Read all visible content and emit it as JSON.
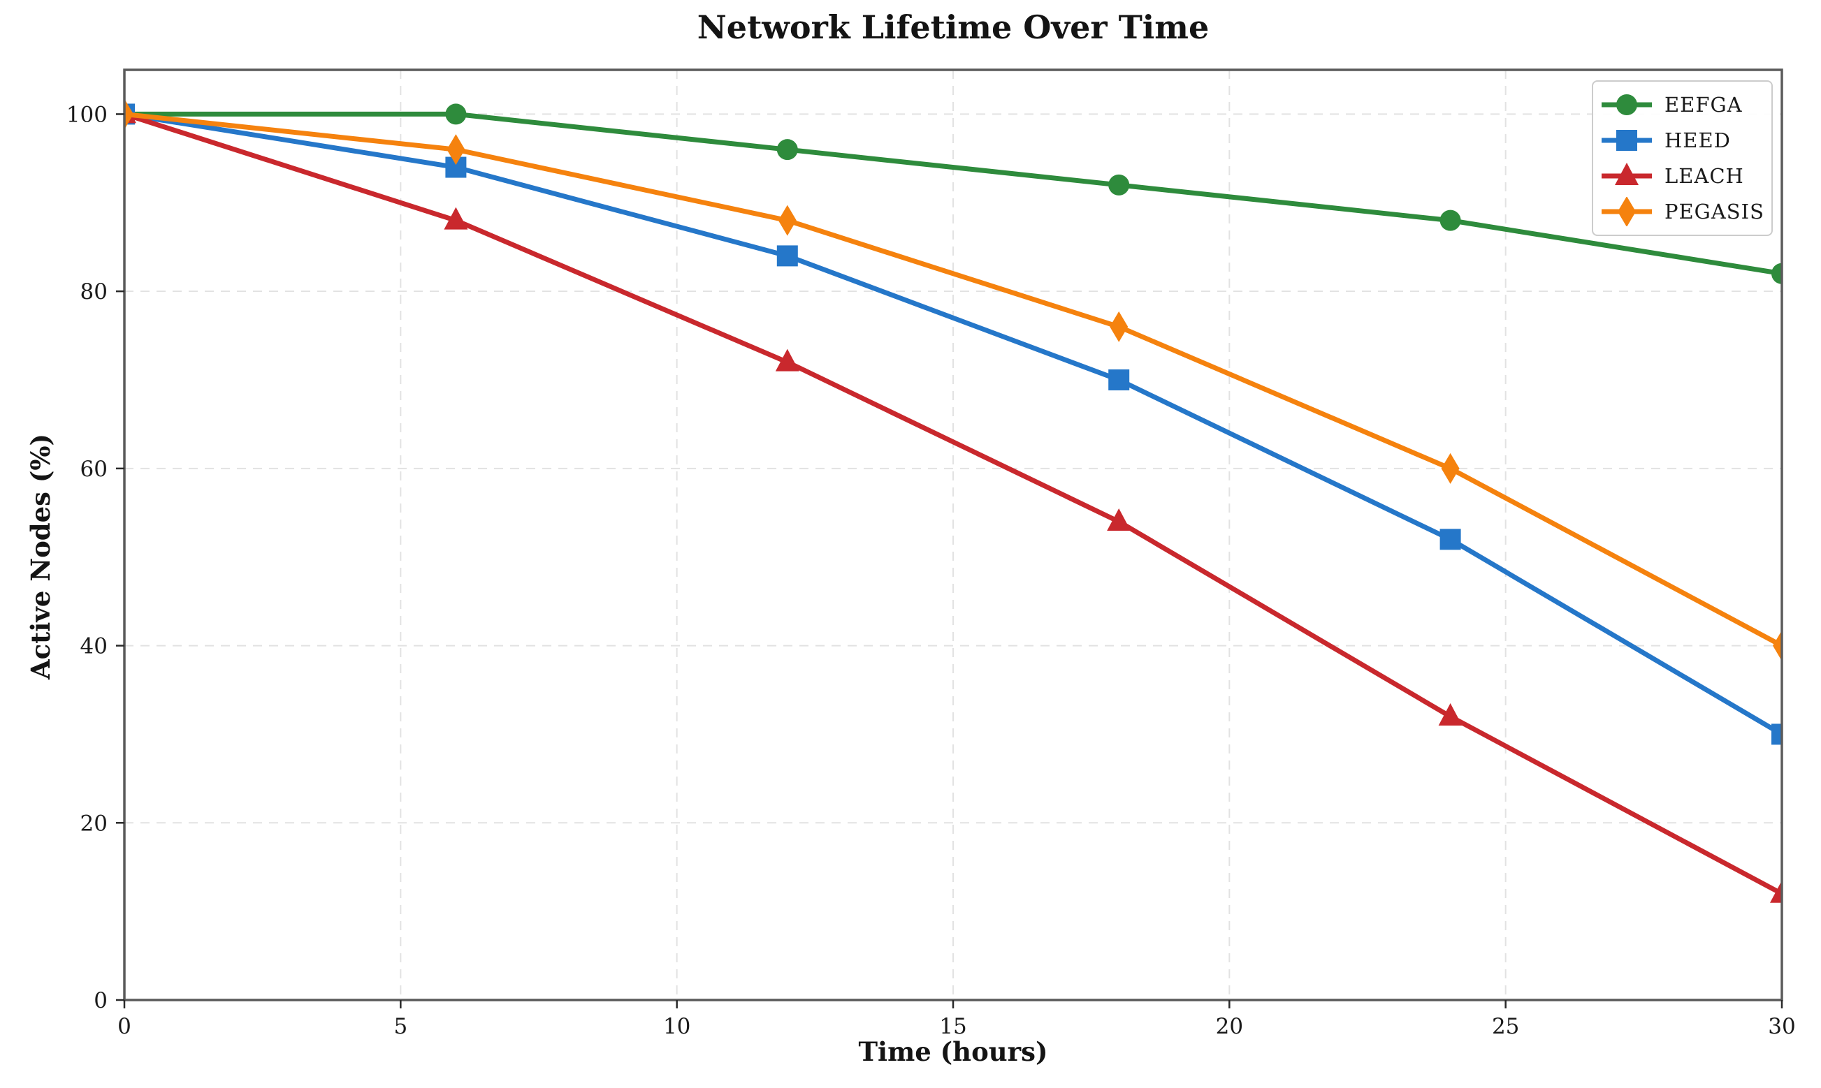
{
  "chart_data": {
    "type": "line",
    "title": "Network Lifetime Over Time",
    "xlabel": "Time (hours)",
    "ylabel": "Active Nodes (%)",
    "x": [
      0,
      6,
      12,
      18,
      24,
      30
    ],
    "series": [
      {
        "name": "EEFGA",
        "color": "#2e8b3c",
        "marker": "circle",
        "values": [
          100,
          100,
          96,
          92,
          88,
          82
        ]
      },
      {
        "name": "HEED",
        "color": "#2577c9",
        "marker": "square",
        "values": [
          100,
          94,
          84,
          70,
          52,
          30
        ]
      },
      {
        "name": "LEACH",
        "color": "#c9282d",
        "marker": "triangle",
        "values": [
          100,
          88,
          72,
          54,
          32,
          12
        ]
      },
      {
        "name": "PEGASIS",
        "color": "#f5820e",
        "marker": "diamond",
        "values": [
          100,
          96,
          88,
          76,
          60,
          40
        ]
      }
    ],
    "xticks": [
      0,
      5,
      10,
      15,
      20,
      25,
      30
    ],
    "yticks": [
      0,
      20,
      40,
      60,
      80,
      100
    ],
    "xlim": [
      0,
      30
    ],
    "ylim": [
      0,
      105
    ],
    "grid": true,
    "grid_color": "#e2e2e2",
    "spine_color": "#5a5a5a",
    "tick_color": "#2a2a2a",
    "tick_label_color": "#1a1a1a",
    "legend_position": "upper right"
  }
}
